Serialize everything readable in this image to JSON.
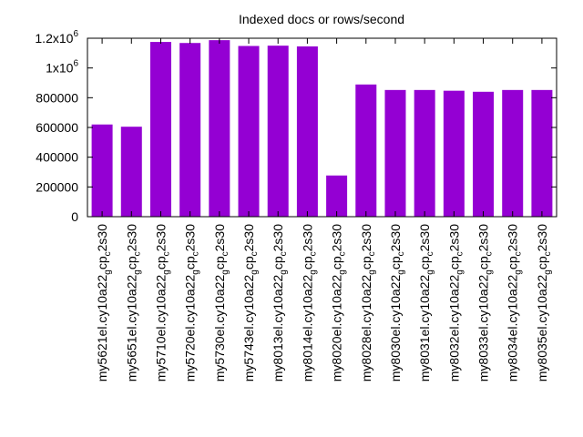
{
  "chart_data": {
    "type": "bar",
    "title": "Indexed docs or rows/second",
    "xlabel": "",
    "ylabel": "",
    "ylim": [
      0,
      1200000
    ],
    "grid": false,
    "legend": "none",
    "bar_color": "#9400d3",
    "y_ticks": [
      {
        "value": 0,
        "label": "0"
      },
      {
        "value": 200000,
        "label": "200000"
      },
      {
        "value": 400000,
        "label": "400000"
      },
      {
        "value": 600000,
        "label": "600000"
      },
      {
        "value": 800000,
        "label": "800000"
      },
      {
        "value": 1000000,
        "label": "1x10",
        "sup": "6"
      },
      {
        "value": 1200000,
        "label": "1.2x10",
        "sup": "6"
      }
    ],
    "categories": [
      {
        "prefix": "my5621el.cy10a22",
        "sub1": "g",
        "mid": "cp",
        "sub2": "c",
        "suffix": "2s30"
      },
      {
        "prefix": "my5651el.cy10a22",
        "sub1": "g",
        "mid": "cp",
        "sub2": "c",
        "suffix": "2s30"
      },
      {
        "prefix": "my5710el.cy10a22",
        "sub1": "g",
        "mid": "cp",
        "sub2": "c",
        "suffix": "2s30"
      },
      {
        "prefix": "my5720el.cy10a22",
        "sub1": "g",
        "mid": "cp",
        "sub2": "c",
        "suffix": "2s30"
      },
      {
        "prefix": "my5730el.cy10a22",
        "sub1": "g",
        "mid": "cp",
        "sub2": "c",
        "suffix": "2s30"
      },
      {
        "prefix": "my5743el.cy10a22",
        "sub1": "g",
        "mid": "cp",
        "sub2": "c",
        "suffix": "2s30"
      },
      {
        "prefix": "my8013el.cy10a22",
        "sub1": "g",
        "mid": "cp",
        "sub2": "c",
        "suffix": "2s30"
      },
      {
        "prefix": "my8014el.cy10a22",
        "sub1": "g",
        "mid": "cp",
        "sub2": "c",
        "suffix": "2s30"
      },
      {
        "prefix": "my8020el.cy10a22",
        "sub1": "g",
        "mid": "cp",
        "sub2": "c",
        "suffix": "2s30"
      },
      {
        "prefix": "my8028el.cy10a22",
        "sub1": "g",
        "mid": "cp",
        "sub2": "c",
        "suffix": "2s30"
      },
      {
        "prefix": "my8030el.cy10a22",
        "sub1": "g",
        "mid": "cp",
        "sub2": "c",
        "suffix": "2s30"
      },
      {
        "prefix": "my8031el.cy10a22",
        "sub1": "g",
        "mid": "cp",
        "sub2": "c",
        "suffix": "2s30"
      },
      {
        "prefix": "my8032el.cy10a22",
        "sub1": "g",
        "mid": "cp",
        "sub2": "c",
        "suffix": "2s30"
      },
      {
        "prefix": "my8033el.cy10a22",
        "sub1": "g",
        "mid": "cp",
        "sub2": "c",
        "suffix": "2s30"
      },
      {
        "prefix": "my8034el.cy10a22",
        "sub1": "g",
        "mid": "cp",
        "sub2": "c",
        "suffix": "2s30"
      },
      {
        "prefix": "my8035el.cy10a22",
        "sub1": "g",
        "mid": "cp",
        "sub2": "c",
        "suffix": "2s30"
      }
    ],
    "values": [
      620000,
      605000,
      1175000,
      1168000,
      1187000,
      1148000,
      1150000,
      1145000,
      277000,
      889000,
      852000,
      852000,
      847000,
      840000,
      852000,
      852000
    ]
  }
}
